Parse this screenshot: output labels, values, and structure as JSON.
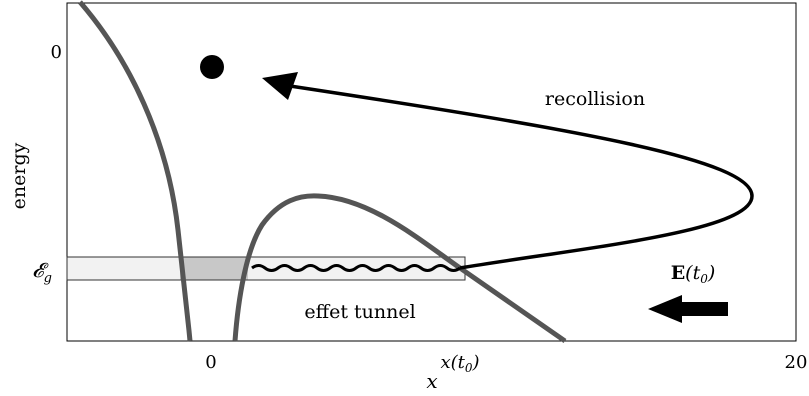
{
  "axes": {
    "ylabel": "energy",
    "y_tick_zero": "0",
    "y_tick_ground": "𝓔",
    "y_tick_ground_sub": "g",
    "x_tick_zero": "0",
    "x_tick_max": "20",
    "x_tick_t0": "x(t",
    "x_tick_t0_sub": "0",
    "x_tick_t0_close": ")",
    "xlabel": "x"
  },
  "labels": {
    "recollision": "recollision",
    "tunnel": "effet tunnel",
    "field_bold": "E",
    "field_rest": "(t",
    "field_sub": "0",
    "field_close": ")"
  },
  "colors": {
    "curve": "#555555",
    "band_fill": "#f2f2f2",
    "band_well": "#c8c8c8",
    "trajectory": "#000000"
  },
  "icons": {
    "electron": "filled-circle",
    "field_arrow": "thick-left-arrow"
  }
}
